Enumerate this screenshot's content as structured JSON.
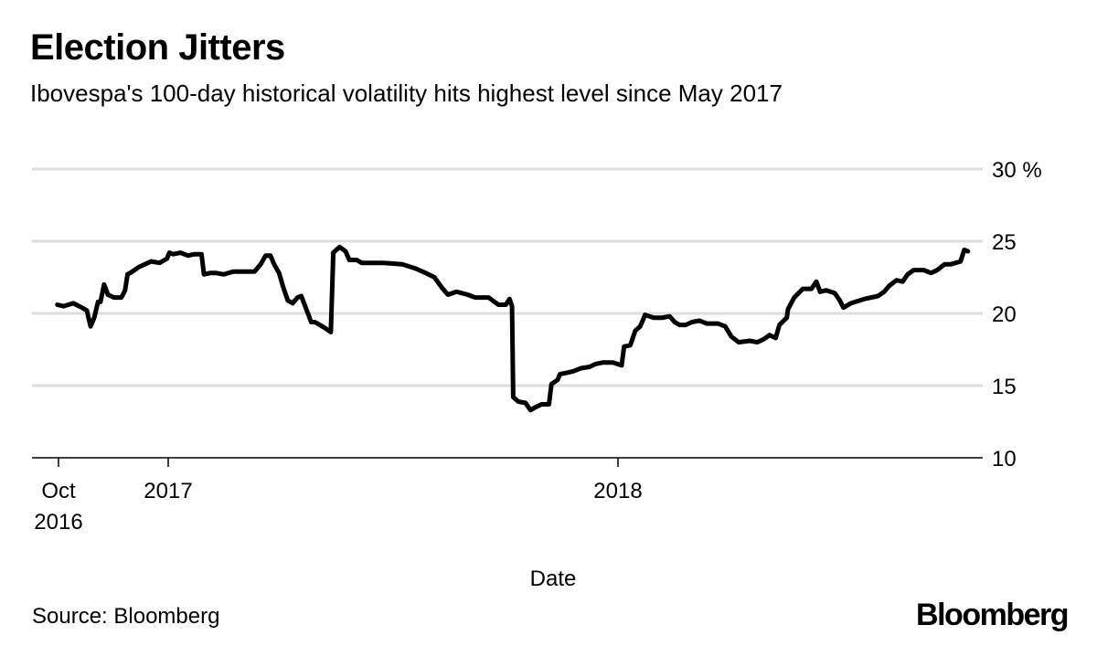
{
  "chart_data": {
    "type": "line",
    "title": "Election Jitters",
    "subtitle": "Ibovespa's 100-day historical volatility hits highest level since May 2017",
    "xlabel": "Date",
    "ylabel": "",
    "ylim": [
      10,
      30
    ],
    "y_ticks": [
      "10",
      "15",
      "20",
      "25",
      "30 %"
    ],
    "y_tick_values": [
      10,
      15,
      20,
      25,
      30
    ],
    "x_ticks": [
      {
        "date": "2016-10-01",
        "label1": "Oct",
        "label2": "2016"
      },
      {
        "date": "2017-01-01",
        "label1": "2017",
        "label2": ""
      },
      {
        "date": "2018-01-01",
        "label1": "2018",
        "label2": ""
      }
    ],
    "grid": true,
    "line_color": "#000000",
    "grid_color": "#dddddd",
    "series": [
      {
        "x": [
          "2016-10-03",
          "2016-10-08",
          "2016-10-16",
          "2016-10-23",
          "2016-10-27",
          "2016-10-30",
          "2016-11-02",
          "2016-11-05",
          "2016-11-07",
          "2016-11-10",
          "2016-11-13",
          "2016-11-18",
          "2016-11-24",
          "2016-11-27",
          "2016-11-29",
          "2016-12-03",
          "2016-12-08",
          "2016-12-13",
          "2016-12-18",
          "2016-12-25",
          "2016-12-31",
          "2017-01-02",
          "2017-01-05",
          "2017-01-11",
          "2017-01-17",
          "2017-01-22",
          "2017-01-28",
          "2017-01-30",
          "2017-02-04",
          "2017-02-09",
          "2017-02-15",
          "2017-02-23",
          "2017-03-06",
          "2017-03-12",
          "2017-03-17",
          "2017-03-21",
          "2017-03-25",
          "2017-03-28",
          "2017-04-01",
          "2017-04-04",
          "2017-04-08",
          "2017-04-12",
          "2017-04-16",
          "2017-04-19",
          "2017-04-23",
          "2017-04-27",
          "2017-04-30",
          "2017-05-04",
          "2017-05-08",
          "2017-05-13",
          "2017-05-15",
          "2017-05-20",
          "2017-05-25",
          "2017-05-28",
          "2017-06-03",
          "2017-06-07",
          "2017-06-25",
          "2017-07-10",
          "2017-07-21",
          "2017-07-29",
          "2017-08-05",
          "2017-08-11",
          "2017-08-16",
          "2017-08-23",
          "2017-09-01",
          "2017-09-07",
          "2017-09-18",
          "2017-09-26",
          "2017-10-02",
          "2017-10-05",
          "2017-10-07",
          "2017-10-08",
          "2017-10-12",
          "2017-10-18",
          "2017-10-22",
          "2017-10-26",
          "2017-10-31",
          "2017-11-06",
          "2017-11-08",
          "2017-11-13",
          "2017-11-15",
          "2017-11-21",
          "2017-11-26",
          "2017-12-02",
          "2017-12-09",
          "2017-12-14",
          "2017-12-20",
          "2017-12-28",
          "2018-01-04",
          "2018-01-06",
          "2018-01-11",
          "2018-01-15",
          "2018-01-19",
          "2018-01-23",
          "2018-01-30",
          "2018-02-06",
          "2018-02-12",
          "2018-02-16",
          "2018-02-20",
          "2018-02-25",
          "2018-03-02",
          "2018-03-08",
          "2018-03-14",
          "2018-03-23",
          "2018-03-29",
          "2018-04-03",
          "2018-04-09",
          "2018-04-18",
          "2018-04-24",
          "2018-04-29",
          "2018-05-04",
          "2018-05-09",
          "2018-05-12",
          "2018-05-18",
          "2018-05-19",
          "2018-05-24",
          "2018-05-31",
          "2018-06-07",
          "2018-06-11",
          "2018-06-14",
          "2018-06-19",
          "2018-06-26",
          "2018-06-30",
          "2018-07-03",
          "2018-07-09",
          "2018-07-20",
          "2018-07-31",
          "2018-08-05",
          "2018-08-09",
          "2018-08-15",
          "2018-08-20",
          "2018-08-24",
          "2018-08-29",
          "2018-09-06",
          "2018-09-12",
          "2018-09-17",
          "2018-09-23",
          "2018-09-28",
          "2018-10-06",
          "2018-10-09",
          "2018-10-12"
        ],
        "y": [
          20.6,
          20.5,
          20.7,
          20.4,
          20.2,
          19.1,
          19.7,
          20.8,
          20.8,
          22.0,
          21.3,
          21.1,
          21.1,
          21.6,
          22.7,
          22.9,
          23.2,
          23.4,
          23.6,
          23.5,
          23.8,
          24.2,
          24.1,
          24.2,
          24.0,
          24.1,
          24.1,
          22.7,
          22.8,
          22.8,
          22.7,
          22.9,
          22.9,
          22.9,
          23.4,
          24.0,
          24.0,
          23.4,
          22.8,
          21.9,
          20.9,
          20.7,
          21.1,
          21.2,
          20.3,
          19.4,
          19.4,
          19.2,
          19.0,
          18.7,
          24.2,
          24.6,
          24.3,
          23.7,
          23.7,
          23.5,
          23.5,
          23.4,
          23.1,
          22.8,
          22.5,
          21.8,
          21.3,
          21.5,
          21.3,
          21.1,
          21.1,
          20.6,
          20.6,
          21.0,
          20.5,
          14.2,
          13.9,
          13.8,
          13.3,
          13.5,
          13.7,
          13.7,
          15.1,
          15.4,
          15.8,
          15.9,
          16.0,
          16.2,
          16.3,
          16.5,
          16.6,
          16.6,
          16.4,
          17.7,
          17.8,
          18.8,
          19.1,
          19.9,
          19.7,
          19.7,
          19.8,
          19.4,
          19.2,
          19.2,
          19.4,
          19.5,
          19.3,
          19.3,
          19.1,
          18.4,
          18.0,
          18.1,
          18.0,
          18.2,
          18.5,
          18.3,
          19.2,
          19.7,
          20.3,
          21.1,
          21.7,
          21.7,
          22.2,
          21.5,
          21.6,
          21.4,
          20.9,
          20.4,
          20.7,
          21.0,
          21.2,
          21.5,
          21.9,
          22.3,
          22.2,
          22.7,
          23.0,
          23.0,
          22.8,
          23.0,
          23.4,
          23.4,
          23.6,
          24.4,
          24.3
        ]
      }
    ]
  },
  "footer": {
    "source": "Source: Bloomberg",
    "logo": "Bloomberg"
  }
}
